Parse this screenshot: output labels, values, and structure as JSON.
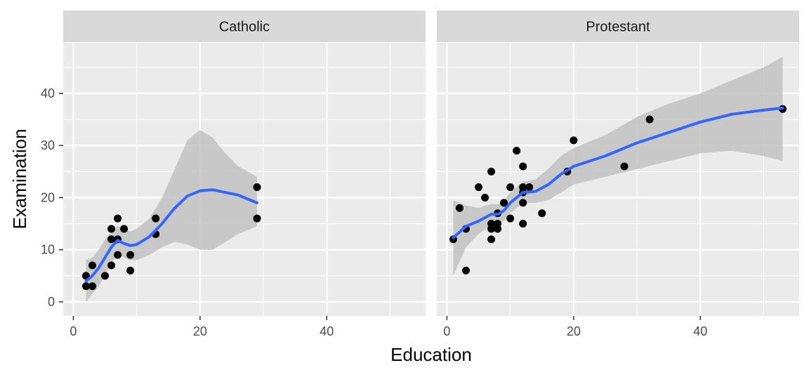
{
  "chart_data": {
    "type": "scatter",
    "xlabel": "Education",
    "ylabel": "Examination",
    "xlim": [
      -1.6,
      55.6
    ],
    "ylim": [
      -2.7,
      49.7
    ],
    "x_ticks": [
      0,
      20,
      40
    ],
    "x_ticks_minor": [
      10,
      30,
      50
    ],
    "y_ticks": [
      0,
      10,
      20,
      30,
      40
    ],
    "y_ticks_minor": [
      5,
      15,
      25,
      35,
      45
    ],
    "x_tick_labels": [
      "0",
      "20",
      "40"
    ],
    "y_tick_labels": [
      "0",
      "10",
      "20",
      "30",
      "40"
    ],
    "grid": true,
    "colors": {
      "panel_bg": "#ebebeb",
      "strip_bg": "#d9d9d9",
      "grid": "#ffffff",
      "points": "#000000",
      "smooth_line": "#3366ff",
      "ribbon": "#c2c2c2"
    },
    "facets": [
      {
        "label": "Catholic",
        "points": [
          {
            "x": 2,
            "y": 3
          },
          {
            "x": 2,
            "y": 5
          },
          {
            "x": 3,
            "y": 3
          },
          {
            "x": 3,
            "y": 7
          },
          {
            "x": 5,
            "y": 5
          },
          {
            "x": 6,
            "y": 7
          },
          {
            "x": 6,
            "y": 12
          },
          {
            "x": 6,
            "y": 14
          },
          {
            "x": 7,
            "y": 9
          },
          {
            "x": 7,
            "y": 12
          },
          {
            "x": 7,
            "y": 16
          },
          {
            "x": 8,
            "y": 14
          },
          {
            "x": 9,
            "y": 6
          },
          {
            "x": 9,
            "y": 9
          },
          {
            "x": 13,
            "y": 13
          },
          {
            "x": 13,
            "y": 16
          },
          {
            "x": 29,
            "y": 16
          },
          {
            "x": 29,
            "y": 22
          }
        ],
        "smooth": [
          {
            "x": 2,
            "y": 4.0,
            "lo": 0.0,
            "hi": 8.0
          },
          {
            "x": 3,
            "y": 5.0,
            "lo": 1.5,
            "hi": 8.5
          },
          {
            "x": 4,
            "y": 6.5,
            "lo": 3.0,
            "hi": 10.0
          },
          {
            "x": 5,
            "y": 8.5,
            "lo": 5.0,
            "hi": 12.0
          },
          {
            "x": 6,
            "y": 10.5,
            "lo": 7.5,
            "hi": 13.5
          },
          {
            "x": 7,
            "y": 11.8,
            "lo": 9.0,
            "hi": 14.5
          },
          {
            "x": 8,
            "y": 11.2,
            "lo": 8.5,
            "hi": 14.0
          },
          {
            "x": 9,
            "y": 10.8,
            "lo": 8.0,
            "hi": 13.5
          },
          {
            "x": 10,
            "y": 11.0,
            "lo": 8.0,
            "hi": 14.0
          },
          {
            "x": 12,
            "y": 12.5,
            "lo": 9.0,
            "hi": 16.0
          },
          {
            "x": 14,
            "y": 15.0,
            "lo": 10.5,
            "hi": 20.0
          },
          {
            "x": 16,
            "y": 18.0,
            "lo": 11.5,
            "hi": 25.5
          },
          {
            "x": 18,
            "y": 20.3,
            "lo": 11.0,
            "hi": 31.0
          },
          {
            "x": 20,
            "y": 21.3,
            "lo": 10.0,
            "hi": 33.0
          },
          {
            "x": 22,
            "y": 21.5,
            "lo": 10.0,
            "hi": 31.5
          },
          {
            "x": 24,
            "y": 21.0,
            "lo": 11.5,
            "hi": 28.5
          },
          {
            "x": 26,
            "y": 20.5,
            "lo": 13.0,
            "hi": 26.0
          },
          {
            "x": 29,
            "y": 19.0,
            "lo": 14.5,
            "hi": 24.0
          }
        ]
      },
      {
        "label": "Protestant",
        "points": [
          {
            "x": 1,
            "y": 12
          },
          {
            "x": 2,
            "y": 18
          },
          {
            "x": 3,
            "y": 6
          },
          {
            "x": 3,
            "y": 14
          },
          {
            "x": 5,
            "y": 22
          },
          {
            "x": 6,
            "y": 20
          },
          {
            "x": 7,
            "y": 12
          },
          {
            "x": 7,
            "y": 14
          },
          {
            "x": 7,
            "y": 15
          },
          {
            "x": 7,
            "y": 25
          },
          {
            "x": 8,
            "y": 14
          },
          {
            "x": 8,
            "y": 15
          },
          {
            "x": 8,
            "y": 17
          },
          {
            "x": 9,
            "y": 19
          },
          {
            "x": 10,
            "y": 16
          },
          {
            "x": 10,
            "y": 22
          },
          {
            "x": 11,
            "y": 29
          },
          {
            "x": 12,
            "y": 15
          },
          {
            "x": 12,
            "y": 19
          },
          {
            "x": 12,
            "y": 21
          },
          {
            "x": 12,
            "y": 22
          },
          {
            "x": 12,
            "y": 26
          },
          {
            "x": 13,
            "y": 22
          },
          {
            "x": 15,
            "y": 17
          },
          {
            "x": 19,
            "y": 25
          },
          {
            "x": 20,
            "y": 31
          },
          {
            "x": 28,
            "y": 26
          },
          {
            "x": 32,
            "y": 35
          },
          {
            "x": 53,
            "y": 37
          }
        ],
        "smooth": [
          {
            "x": 1,
            "y": 12.3,
            "lo": 5.0,
            "hi": 19.5
          },
          {
            "x": 3,
            "y": 14.5,
            "lo": 10.5,
            "hi": 18.5
          },
          {
            "x": 5,
            "y": 15.5,
            "lo": 13.0,
            "hi": 18.0
          },
          {
            "x": 7,
            "y": 16.8,
            "lo": 14.8,
            "hi": 18.8
          },
          {
            "x": 8,
            "y": 16.8,
            "lo": 15.0,
            "hi": 18.7
          },
          {
            "x": 9,
            "y": 17.5,
            "lo": 15.5,
            "hi": 19.5
          },
          {
            "x": 10,
            "y": 19.0,
            "lo": 17.0,
            "hi": 21.0
          },
          {
            "x": 12,
            "y": 21.0,
            "lo": 19.0,
            "hi": 23.0
          },
          {
            "x": 14,
            "y": 21.2,
            "lo": 19.0,
            "hi": 23.5
          },
          {
            "x": 16,
            "y": 22.5,
            "lo": 19.5,
            "hi": 25.5
          },
          {
            "x": 18,
            "y": 24.5,
            "lo": 21.0,
            "hi": 28.0
          },
          {
            "x": 20,
            "y": 26.0,
            "lo": 22.5,
            "hi": 29.5
          },
          {
            "x": 25,
            "y": 28.0,
            "lo": 24.0,
            "hi": 32.0
          },
          {
            "x": 30,
            "y": 30.5,
            "lo": 25.5,
            "hi": 35.5
          },
          {
            "x": 35,
            "y": 32.5,
            "lo": 27.0,
            "hi": 38.0
          },
          {
            "x": 40,
            "y": 34.5,
            "lo": 28.5,
            "hi": 40.0
          },
          {
            "x": 45,
            "y": 36.0,
            "lo": 29.0,
            "hi": 42.5
          },
          {
            "x": 50,
            "y": 36.8,
            "lo": 28.0,
            "hi": 45.0
          },
          {
            "x": 53,
            "y": 37.2,
            "lo": 27.0,
            "hi": 47.0
          }
        ]
      }
    ]
  }
}
